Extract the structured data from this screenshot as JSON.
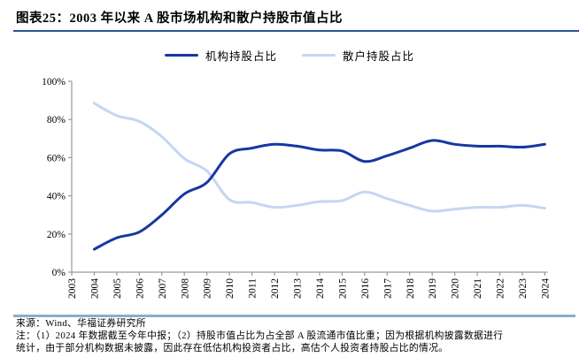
{
  "header": {
    "title": "图表25：2003 年以来 A 股市场机构和散户持股市值占比"
  },
  "chart_data": {
    "type": "line",
    "title": "2003 年以来 A 股市场机构和散户持股市值占比",
    "x": [
      2004,
      2005,
      2006,
      2007,
      2008,
      2009,
      2010,
      2011,
      2012,
      2013,
      2014,
      2015,
      2016,
      2017,
      2018,
      2019,
      2020,
      2021,
      2022,
      2023,
      2024
    ],
    "axis_years": [
      2003,
      2004,
      2005,
      2006,
      2007,
      2008,
      2009,
      2010,
      2011,
      2012,
      2013,
      2014,
      2015,
      2016,
      2017,
      2018,
      2019,
      2020,
      2021,
      2022,
      2023,
      2024
    ],
    "series": [
      {
        "name": "机构持股占比",
        "color": "#1737A2",
        "values": [
          12,
          18,
          21,
          30,
          41,
          47,
          62,
          65,
          67,
          66,
          64,
          63.5,
          58,
          61,
          65,
          69,
          67,
          66,
          66,
          65.5,
          67
        ]
      },
      {
        "name": "散户持股占比",
        "color": "#C5D6F3",
        "values": [
          88.5,
          82,
          79,
          71,
          59.5,
          53,
          38,
          36.5,
          34,
          35,
          37,
          37.5,
          42,
          38.5,
          35,
          32,
          33,
          34,
          34,
          35,
          33.5
        ]
      }
    ],
    "ylim": [
      0,
      100
    ],
    "y_ticks": [
      0,
      20,
      40,
      60,
      80,
      100
    ],
    "y_tick_labels": [
      "0%",
      "20%",
      "40%",
      "60%",
      "80%",
      "100%"
    ],
    "grid": false,
    "legend_position": "top",
    "axis_color": "#999999",
    "tick_label_color": "#000000"
  },
  "footer": {
    "source": "来源：Wind、华福证券研究所",
    "note_line1": "注：（1）2024 年数据截至今年中报；（2）持股市值占比为占全部 A 股流通市值比重；因为根据机构披露数据进行",
    "note_line2": "统计，由于部分机构数据未披露，因此存在低估机构投资者占比，高估个人投资者持股占比的情况。"
  },
  "colors": {
    "title_rule": "#2F5597",
    "bottom_rule": "#8FAACC"
  }
}
